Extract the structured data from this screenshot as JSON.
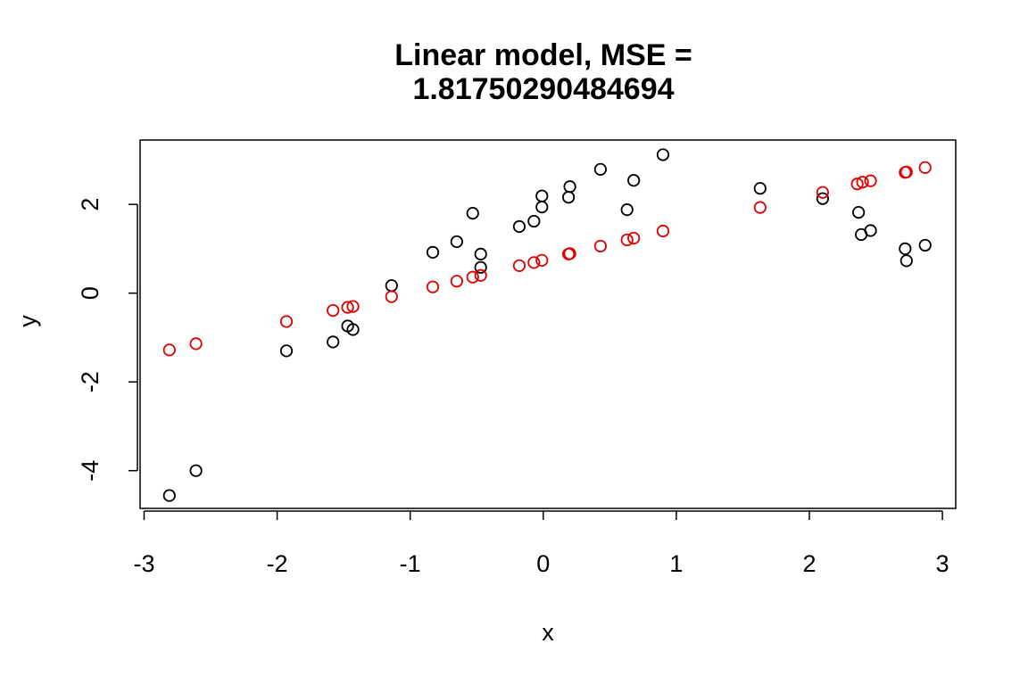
{
  "chart_data": {
    "type": "scatter",
    "title_lines": [
      "Linear model, MSE =",
      "1.81750290484694"
    ],
    "xlabel": "x",
    "ylabel": "y",
    "xlim": [
      -3.03,
      3.1
    ],
    "ylim": [
      -4.85,
      3.45
    ],
    "xticks": [
      -3,
      -2,
      -1,
      0,
      1,
      2,
      3
    ],
    "xtick_labels": [
      "-3",
      "-2",
      "-1",
      "0",
      "1",
      "2",
      "3"
    ],
    "yticks": [
      -4,
      -2,
      0,
      2
    ],
    "ytick_labels": [
      "-4",
      "-2",
      "0",
      "2"
    ],
    "grid": false,
    "series": [
      {
        "color": "#000000",
        "points": [
          [
            -2.81,
            -4.56
          ],
          [
            -2.61,
            -4.0
          ],
          [
            -1.93,
            -1.3
          ],
          [
            -1.58,
            -1.1
          ],
          [
            -1.47,
            -0.74
          ],
          [
            -1.43,
            -0.82
          ],
          [
            -1.14,
            0.17
          ],
          [
            -0.83,
            0.92
          ],
          [
            -0.65,
            1.16
          ],
          [
            -0.53,
            1.8
          ],
          [
            -0.47,
            0.88
          ],
          [
            -0.47,
            0.58
          ],
          [
            -0.18,
            1.5
          ],
          [
            -0.07,
            1.62
          ],
          [
            -0.01,
            2.19
          ],
          [
            -0.01,
            1.94
          ],
          [
            0.19,
            2.16
          ],
          [
            0.2,
            2.4
          ],
          [
            0.43,
            2.79
          ],
          [
            0.63,
            1.88
          ],
          [
            0.68,
            2.54
          ],
          [
            0.9,
            3.12
          ],
          [
            1.63,
            2.36
          ],
          [
            2.1,
            2.13
          ],
          [
            2.37,
            1.82
          ],
          [
            2.39,
            1.32
          ],
          [
            2.46,
            1.41
          ],
          [
            2.72,
            1.0
          ],
          [
            2.73,
            0.73
          ],
          [
            2.87,
            1.08
          ]
        ]
      },
      {
        "color": "#df0000",
        "points": [
          [
            -2.81,
            -1.28
          ],
          [
            -2.61,
            -1.14
          ],
          [
            -1.93,
            -0.64
          ],
          [
            -1.58,
            -0.39
          ],
          [
            -1.47,
            -0.32
          ],
          [
            -1.43,
            -0.3
          ],
          [
            -1.14,
            -0.08
          ],
          [
            -0.83,
            0.14
          ],
          [
            -0.65,
            0.27
          ],
          [
            -0.53,
            0.36
          ],
          [
            -0.47,
            0.4
          ],
          [
            -0.18,
            0.62
          ],
          [
            -0.07,
            0.69
          ],
          [
            -0.01,
            0.74
          ],
          [
            0.19,
            0.88
          ],
          [
            0.2,
            0.89
          ],
          [
            0.43,
            1.06
          ],
          [
            0.63,
            1.2
          ],
          [
            0.68,
            1.24
          ],
          [
            0.9,
            1.4
          ],
          [
            1.63,
            1.93
          ],
          [
            2.1,
            2.27
          ],
          [
            2.36,
            2.46
          ],
          [
            2.4,
            2.5
          ],
          [
            2.46,
            2.53
          ],
          [
            2.72,
            2.72
          ],
          [
            2.73,
            2.73
          ],
          [
            2.87,
            2.83
          ]
        ]
      }
    ]
  }
}
